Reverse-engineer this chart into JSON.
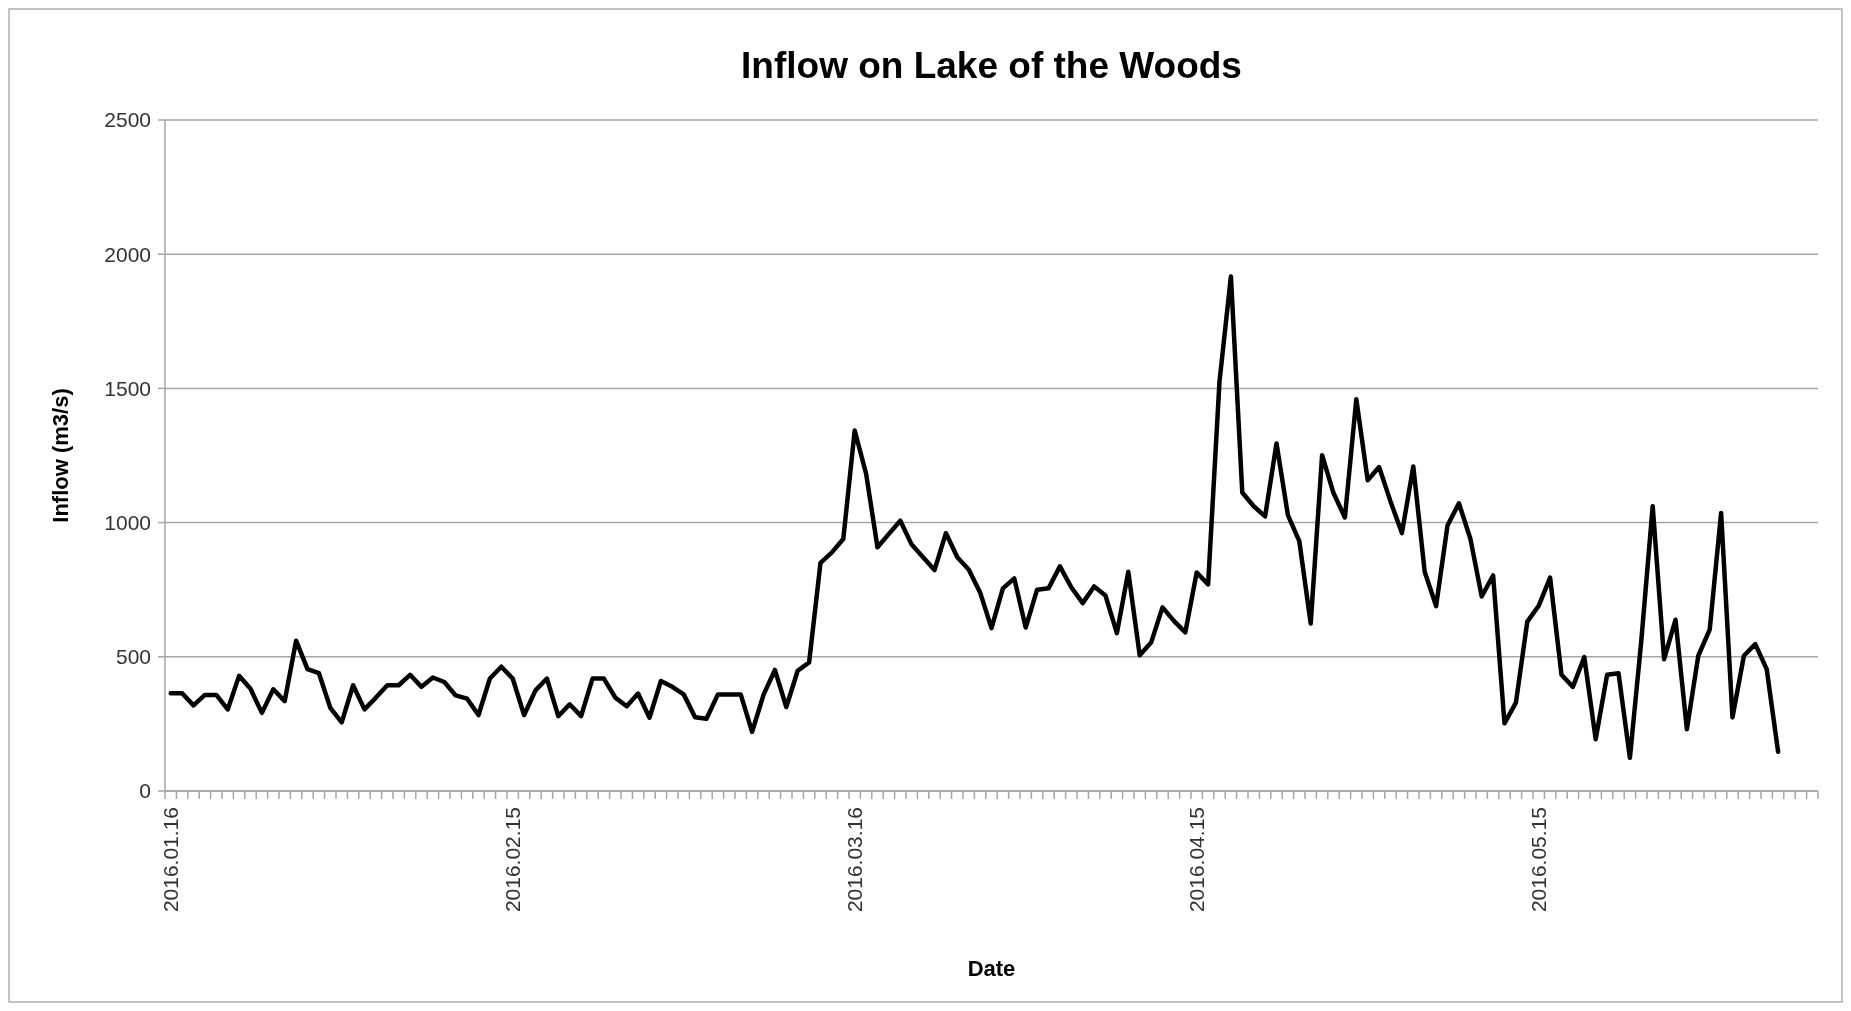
{
  "chart_data": {
    "type": "line",
    "title": "Inflow on Lake of the Woods",
    "xlabel": "Date",
    "ylabel": "Inflow (m3/s)",
    "categories": [
      "2016.01.16",
      null,
      null,
      null,
      null,
      null,
      null,
      null,
      null,
      null,
      null,
      null,
      null,
      null,
      null,
      null,
      null,
      null,
      null,
      null,
      null,
      null,
      null,
      null,
      null,
      null,
      null,
      null,
      null,
      null,
      "2016.02.15",
      null,
      null,
      null,
      null,
      null,
      null,
      null,
      null,
      null,
      null,
      null,
      null,
      null,
      null,
      null,
      null,
      null,
      null,
      null,
      null,
      null,
      null,
      null,
      null,
      null,
      null,
      null,
      null,
      null,
      "2016.03.16",
      null,
      null,
      null,
      null,
      null,
      null,
      null,
      null,
      null,
      null,
      null,
      null,
      null,
      null,
      null,
      null,
      null,
      null,
      null,
      null,
      null,
      null,
      null,
      null,
      null,
      null,
      null,
      null,
      null,
      "2016.04.15",
      null,
      null,
      null,
      null,
      null,
      null,
      null,
      null,
      null,
      null,
      null,
      null,
      null,
      null,
      null,
      null,
      null,
      null,
      null,
      null,
      null,
      null,
      null,
      null,
      null,
      null,
      null,
      null,
      null,
      "2016.05.15",
      null,
      null,
      null,
      null,
      null,
      null,
      null,
      null,
      null,
      null,
      null,
      null,
      null,
      null,
      null,
      null,
      null,
      null,
      null,
      null,
      null,
      null,
      null,
      null
    ],
    "series": [
      {
        "color": "#000000",
        "values": [
          364,
          364,
          319,
          358,
          358,
          304,
          429,
          381,
          291,
          379,
          335,
          560,
          454,
          439,
          310,
          256,
          394,
          304,
          348,
          394,
          394,
          433,
          388,
          423,
          406,
          356,
          344,
          283,
          419,
          463,
          419,
          283,
          375,
          419,
          279,
          323,
          279,
          419,
          419,
          348,
          316,
          363,
          273,
          410,
          388,
          360,
          275,
          269,
          360,
          360,
          360,
          220,
          358,
          451,
          313,
          448,
          479,
          850,
          889,
          939,
          1343,
          1182,
          908,
          958,
          1007,
          918,
          871,
          823,
          961,
          871,
          825,
          740,
          607,
          755,
          792,
          609,
          750,
          755,
          837,
          759,
          700,
          762,
          728,
          588,
          817,
          506,
          553,
          684,
          634,
          591,
          814,
          770,
          1526,
          1917,
          1112,
          1061,
          1023,
          1295,
          1028,
          931,
          624,
          1251,
          1110,
          1019,
          1460,
          1158,
          1207,
          1079,
          961,
          1209,
          817,
          689,
          989,
          1072,
          941,
          725,
          803,
          252,
          329,
          631,
          690,
          795,
          433,
          388,
          499,
          193,
          433,
          439,
          124,
          560,
          1061,
          491,
          638,
          230,
          504,
          601,
          1036,
          274,
          504,
          547,
          454,
          146,
          null,
          null,
          null
        ]
      }
    ],
    "ylim": [
      0,
      2500
    ],
    "yticks": [
      0,
      500,
      1000,
      1500,
      2000,
      2500
    ],
    "grid": "y",
    "marker": "none",
    "line_style": "solid"
  }
}
